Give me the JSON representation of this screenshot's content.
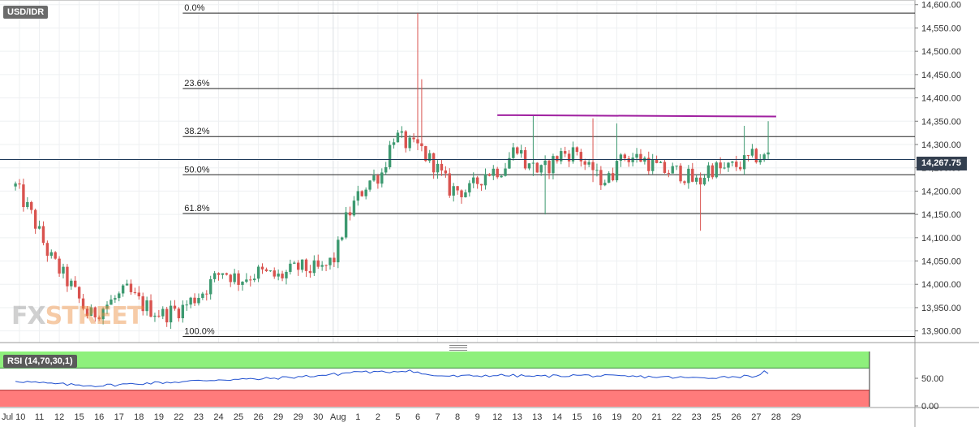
{
  "chart_data": {
    "type": "candlestick",
    "symbol": "USD/IDR",
    "last_price": "14,267.75",
    "y_axis": {
      "min": 13875,
      "max": 14610,
      "ticks": [
        "13,900.00",
        "13,950.00",
        "14,000.00",
        "14,050.00",
        "14,100.00",
        "14,150.00",
        "14,200.00",
        "14,250.00",
        "14,300.00",
        "14,350.00",
        "14,400.00",
        "14,450.00",
        "14,500.00",
        "14,550.00",
        "14,600.00"
      ],
      "tick_values": [
        13900,
        13950,
        14000,
        14050,
        14100,
        14150,
        14200,
        14250,
        14300,
        14350,
        14400,
        14450,
        14500,
        14550,
        14600
      ]
    },
    "x_axis": {
      "labels": [
        {
          "text": "Jul 10",
          "day": 0
        },
        {
          "text": "11",
          "day": 1
        },
        {
          "text": "12",
          "day": 2
        },
        {
          "text": "15",
          "day": 3
        },
        {
          "text": "16",
          "day": 4
        },
        {
          "text": "17",
          "day": 5
        },
        {
          "text": "18",
          "day": 6
        },
        {
          "text": "19",
          "day": 7
        },
        {
          "text": "22",
          "day": 8
        },
        {
          "text": "23",
          "day": 9
        },
        {
          "text": "24",
          "day": 10
        },
        {
          "text": "25",
          "day": 11
        },
        {
          "text": "26",
          "day": 12
        },
        {
          "text": "29",
          "day": 13
        },
        {
          "text": "29",
          "day": 14
        },
        {
          "text": "30",
          "day": 15
        },
        {
          "text": "Aug",
          "day": 16
        },
        {
          "text": "1",
          "day": 17
        },
        {
          "text": "2",
          "day": 18
        },
        {
          "text": "5",
          "day": 19
        },
        {
          "text": "6",
          "day": 20
        },
        {
          "text": "7",
          "day": 21
        },
        {
          "text": "8",
          "day": 22
        },
        {
          "text": "9",
          "day": 23
        },
        {
          "text": "12",
          "day": 24
        },
        {
          "text": "13",
          "day": 25
        },
        {
          "text": "13",
          "day": 26
        },
        {
          "text": "14",
          "day": 27
        },
        {
          "text": "15",
          "day": 28
        },
        {
          "text": "16",
          "day": 29
        },
        {
          "text": "19",
          "day": 30
        },
        {
          "text": "20",
          "day": 31
        },
        {
          "text": "21",
          "day": 32
        },
        {
          "text": "22",
          "day": 33
        },
        {
          "text": "23",
          "day": 34
        },
        {
          "text": "25",
          "day": 35
        },
        {
          "text": "26",
          "day": 36
        },
        {
          "text": "27",
          "day": 37
        },
        {
          "text": "28",
          "day": 38
        },
        {
          "text": "29",
          "day": 39
        }
      ]
    },
    "fibonacci": [
      {
        "label": "0.0%",
        "value": 14582
      },
      {
        "label": "23.6%",
        "value": 14420
      },
      {
        "label": "38.2%",
        "value": 14317
      },
      {
        "label": "50.0%",
        "value": 14235
      },
      {
        "label": "61.8%",
        "value": 14152
      },
      {
        "label": "100.0%",
        "value": 13888
      }
    ],
    "trendline": {
      "from": {
        "day": 24.0,
        "value": 14363
      },
      "to": {
        "day": 38.0,
        "value": 14360
      }
    },
    "anchors": [
      {
        "day": -0.2,
        "value": 14210
      },
      {
        "day": 0.7,
        "value": 14140
      },
      {
        "day": 1.5,
        "value": 14060
      },
      {
        "day": 2.6,
        "value": 13995
      },
      {
        "day": 3.5,
        "value": 13930
      },
      {
        "day": 4.5,
        "value": 13960
      },
      {
        "day": 5.4,
        "value": 13985
      },
      {
        "day": 6.2,
        "value": 13955
      },
      {
        "day": 7.2,
        "value": 13935
      },
      {
        "day": 8.2,
        "value": 13950
      },
      {
        "day": 9.2,
        "value": 13985
      },
      {
        "day": 10.2,
        "value": 14030
      },
      {
        "day": 11.0,
        "value": 14010
      },
      {
        "day": 12.0,
        "value": 14025
      },
      {
        "day": 13.0,
        "value": 14015
      },
      {
        "day": 14.0,
        "value": 14035
      },
      {
        "day": 15.2,
        "value": 14030
      },
      {
        "day": 15.9,
        "value": 14060
      },
      {
        "day": 16.3,
        "value": 14130
      },
      {
        "day": 16.9,
        "value": 14180
      },
      {
        "day": 17.5,
        "value": 14220
      },
      {
        "day": 18.2,
        "value": 14240
      },
      {
        "day": 18.8,
        "value": 14320
      },
      {
        "day": 19.5,
        "value": 14300
      },
      {
        "day": 20.1,
        "value": 14285
      },
      {
        "day": 20.8,
        "value": 14260
      },
      {
        "day": 21.6,
        "value": 14205
      },
      {
        "day": 22.6,
        "value": 14200
      },
      {
        "day": 23.4,
        "value": 14240
      },
      {
        "day": 24.3,
        "value": 14250
      },
      {
        "day": 25.0,
        "value": 14300
      },
      {
        "day": 25.5,
        "value": 14250
      },
      {
        "day": 26.2,
        "value": 14240
      },
      {
        "day": 27.2,
        "value": 14280
      },
      {
        "day": 28.0,
        "value": 14285
      },
      {
        "day": 28.8,
        "value": 14230
      },
      {
        "day": 29.6,
        "value": 14225
      },
      {
        "day": 30.4,
        "value": 14275
      },
      {
        "day": 31.3,
        "value": 14270
      },
      {
        "day": 32.2,
        "value": 14245
      },
      {
        "day": 33.2,
        "value": 14240
      },
      {
        "day": 34.1,
        "value": 14215
      },
      {
        "day": 34.6,
        "value": 14250
      },
      {
        "day": 35.4,
        "value": 14245
      },
      {
        "day": 36.3,
        "value": 14260
      },
      {
        "day": 37.0,
        "value": 14275
      },
      {
        "day": 37.6,
        "value": 14268
      }
    ],
    "spikes": [
      {
        "day": 19.92,
        "high": 14582
      },
      {
        "day": 20.15,
        "high": 14440
      },
      {
        "day": 25.85,
        "high": 14362
      },
      {
        "day": 26.4,
        "low": 14150
      },
      {
        "day": 34.25,
        "low": 14115
      },
      {
        "day": 36.4,
        "high": 14340
      },
      {
        "day": 28.7,
        "high": 14356
      },
      {
        "day": 30.0,
        "high": 14345
      },
      {
        "day": 37.6,
        "high": 14350
      }
    ],
    "candle_width_days": 0.2,
    "rsi": {
      "label": "RSI (14,70,30,1)",
      "ticks": [
        "0.00",
        "50.00"
      ],
      "tick_values": [
        0,
        50
      ],
      "overbought": 70,
      "oversold": 30,
      "anchors": [
        {
          "day": -0.2,
          "value": 47
        },
        {
          "day": 1.0,
          "value": 43
        },
        {
          "day": 2.5,
          "value": 40
        },
        {
          "day": 4.0,
          "value": 38
        },
        {
          "day": 6.0,
          "value": 42
        },
        {
          "day": 8.0,
          "value": 45
        },
        {
          "day": 10.0,
          "value": 49
        },
        {
          "day": 12.0,
          "value": 50
        },
        {
          "day": 14.0,
          "value": 54
        },
        {
          "day": 16.0,
          "value": 59
        },
        {
          "day": 17.0,
          "value": 64
        },
        {
          "day": 18.0,
          "value": 62
        },
        {
          "day": 19.6,
          "value": 66
        },
        {
          "day": 20.5,
          "value": 57
        },
        {
          "day": 22.0,
          "value": 55
        },
        {
          "day": 24.0,
          "value": 57
        },
        {
          "day": 26.0,
          "value": 55
        },
        {
          "day": 28.0,
          "value": 57
        },
        {
          "day": 30.0,
          "value": 55
        },
        {
          "day": 32.0,
          "value": 54
        },
        {
          "day": 34.0,
          "value": 52
        },
        {
          "day": 35.5,
          "value": 54
        },
        {
          "day": 37.0,
          "value": 56
        },
        {
          "day": 37.4,
          "value": 63
        },
        {
          "day": 37.6,
          "value": 58
        }
      ]
    },
    "colors": {
      "bull": "#3d9970",
      "bear": "#d9534f",
      "fib_line": "#222222",
      "trendline": "#a020a0",
      "price_line": "#1f3a5a",
      "rsi_line": "#1f4fcf",
      "rsi_overbought": "#8ef07c",
      "rsi_oversold": "#ff7b7b",
      "grid": "#eef0f2"
    }
  },
  "watermark": {
    "part1": "FX",
    "part2": "STREET"
  }
}
